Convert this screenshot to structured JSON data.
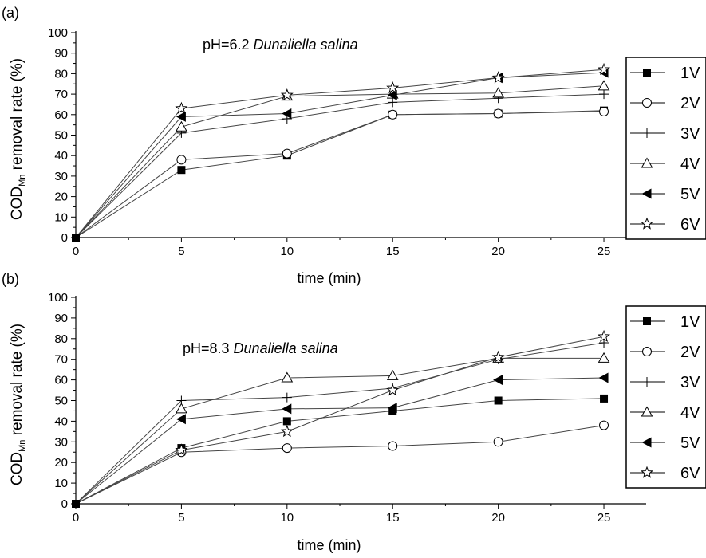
{
  "chart_data": [
    {
      "panel": "(a)",
      "type": "line",
      "annotation": {
        "ph": "pH=6.2",
        "species": "Dunaliella salina"
      },
      "xlabel": "time (min)",
      "ylabel": {
        "main": "COD",
        "sub": "Mn",
        "rest": " removal rate (%)"
      },
      "x": [
        0,
        5,
        10,
        15,
        20,
        25
      ],
      "xlim": [
        0,
        27
      ],
      "ylim": [
        0,
        100
      ],
      "xticks": [
        0,
        5,
        10,
        15,
        20,
        25
      ],
      "yticks": [
        0,
        10,
        20,
        30,
        40,
        50,
        60,
        70,
        80,
        90,
        100
      ],
      "legend_position": "right",
      "series": [
        {
          "name": "1V",
          "marker": "square-filled",
          "values": [
            0,
            33,
            40,
            60,
            60.5,
            62
          ]
        },
        {
          "name": "2V",
          "marker": "circle-open",
          "values": [
            0,
            38,
            41,
            60,
            60.5,
            61.5
          ]
        },
        {
          "name": "3V",
          "marker": "plus",
          "values": [
            0,
            51,
            58,
            66,
            68,
            70
          ]
        },
        {
          "name": "4V",
          "marker": "triangle-up-open",
          "values": [
            0,
            54,
            69,
            70,
            70.5,
            74
          ]
        },
        {
          "name": "5V",
          "marker": "triangle-left-filled",
          "values": [
            0,
            59,
            60.5,
            69.5,
            78,
            80.5
          ]
        },
        {
          "name": "6V",
          "marker": "star-open",
          "values": [
            0,
            63,
            69.5,
            73,
            78,
            82
          ]
        }
      ]
    },
    {
      "panel": "(b)",
      "type": "line",
      "annotation": {
        "ph": "pH=8.3",
        "species": "Dunaliella salina"
      },
      "xlabel": "time (min)",
      "ylabel": {
        "main": "COD",
        "sub": "Mn",
        "rest": " removal rate (%)"
      },
      "x": [
        0,
        5,
        10,
        15,
        20,
        25
      ],
      "xlim": [
        0,
        27
      ],
      "ylim": [
        0,
        100
      ],
      "xticks": [
        0,
        5,
        10,
        15,
        20,
        25
      ],
      "yticks": [
        0,
        10,
        20,
        30,
        40,
        50,
        60,
        70,
        80,
        90,
        100
      ],
      "legend_position": "right",
      "series": [
        {
          "name": "1V",
          "marker": "square-filled",
          "values": [
            0,
            27,
            40,
            45,
            50,
            51
          ]
        },
        {
          "name": "2V",
          "marker": "circle-open",
          "values": [
            0,
            25,
            27,
            28,
            30,
            38
          ]
        },
        {
          "name": "3V",
          "marker": "plus",
          "values": [
            0,
            50,
            51.5,
            56,
            70,
            78
          ]
        },
        {
          "name": "4V",
          "marker": "triangle-up-open",
          "values": [
            0,
            46,
            61,
            62,
            70.5,
            70.5
          ]
        },
        {
          "name": "5V",
          "marker": "triangle-left-filled",
          "values": [
            0,
            41,
            46,
            46.5,
            60,
            61
          ]
        },
        {
          "name": "6V",
          "marker": "star-open",
          "values": [
            0,
            26,
            35,
            55,
            71,
            81
          ]
        }
      ]
    }
  ]
}
